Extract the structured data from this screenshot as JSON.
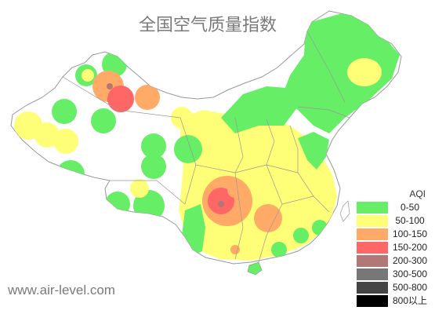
{
  "title": "全国空气质量指数",
  "watermark": "www.air-level.com",
  "legend": {
    "title": "AQI",
    "items": [
      {
        "label": "0-50",
        "color": "#66ee66"
      },
      {
        "label": "50-100",
        "color": "#ffff77"
      },
      {
        "label": "100-150",
        "color": "#ffaa66"
      },
      {
        "label": "150-200",
        "color": "#ff6666"
      },
      {
        "label": "200-300",
        "color": "#b27777"
      },
      {
        "label": "300-500",
        "color": "#777777"
      },
      {
        "label": "500-800",
        "color": "#444444"
      },
      {
        "label": "800以上",
        "color": "#000000"
      }
    ]
  }
}
